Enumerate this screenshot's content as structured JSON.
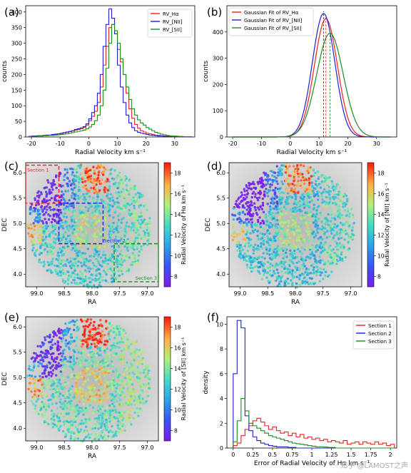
{
  "panels": {
    "a": {
      "label": "(a)"
    },
    "b": {
      "label": "(b)"
    },
    "c": {
      "label": "(c)"
    },
    "d": {
      "label": "(d)"
    },
    "e": {
      "label": "(e)"
    },
    "f": {
      "label": "(f)"
    }
  },
  "watermark": "知乎 @LAMOST之声",
  "colors": {
    "red": "#e8231e",
    "blue": "#1f1fd6",
    "green": "#1e8b1e",
    "sky_bg": "#d4d4d4"
  },
  "chart_data": [
    {
      "id": "a",
      "type": "histogram",
      "xlabel": "Radial Velocity km s⁻¹",
      "ylabel": "counts",
      "xlim": [
        -22,
        37
      ],
      "ylim": [
        0,
        420
      ],
      "xticks": [
        -20,
        -10,
        0,
        10,
        20,
        30
      ],
      "yticks": [
        0,
        50,
        100,
        150,
        200,
        250,
        300,
        350,
        400
      ],
      "legend": "top-right",
      "bin_start": -21,
      "bin_width": 1,
      "series": [
        {
          "name": "RV_Hα",
          "color": "#e8231e",
          "values": [
            2,
            3,
            3,
            4,
            4,
            5,
            6,
            6,
            7,
            8,
            10,
            11,
            13,
            15,
            17,
            19,
            22,
            24,
            27,
            30,
            38,
            52,
            66,
            82,
            110,
            160,
            230,
            290,
            350,
            360,
            340,
            280,
            240,
            200,
            140,
            90,
            60,
            40,
            28,
            20,
            16,
            12,
            10,
            8,
            6,
            5,
            4,
            3,
            3,
            2,
            2,
            2,
            1,
            1,
            1,
            1,
            1
          ]
        },
        {
          "name": "RV_[NII]",
          "color": "#1f1fd6",
          "values": [
            2,
            3,
            3,
            4,
            4,
            5,
            6,
            6,
            8,
            9,
            10,
            12,
            14,
            16,
            18,
            20,
            24,
            26,
            29,
            33,
            42,
            58,
            78,
            100,
            140,
            200,
            290,
            360,
            410,
            380,
            330,
            230,
            160,
            110,
            70,
            45,
            30,
            20,
            15,
            12,
            10,
            8,
            6,
            5,
            4,
            3,
            3,
            2,
            2,
            1,
            1,
            1,
            1,
            1,
            0,
            0,
            0
          ]
        },
        {
          "name": "RV_[SII]",
          "color": "#1e8b1e",
          "values": [
            1,
            2,
            2,
            3,
            3,
            4,
            4,
            5,
            5,
            6,
            7,
            8,
            9,
            10,
            12,
            14,
            16,
            18,
            20,
            22,
            26,
            32,
            40,
            52,
            70,
            100,
            150,
            220,
            300,
            360,
            340,
            300,
            250,
            200,
            160,
            120,
            90,
            70,
            55,
            45,
            38,
            30,
            25,
            20,
            15,
            12,
            9,
            7,
            5,
            4,
            3,
            3,
            2,
            2,
            1,
            1,
            1
          ]
        }
      ]
    },
    {
      "id": "b",
      "type": "line",
      "xlabel": "Radial Velocity km s⁻¹",
      "ylabel": "counts",
      "xlim": [
        -22,
        37
      ],
      "ylim": [
        0,
        500
      ],
      "xticks": [
        -20,
        -10,
        0,
        10,
        20,
        30
      ],
      "yticks": [
        0,
        100,
        200,
        300,
        400
      ],
      "legend": "top-left",
      "vlines": "dashed at each mean",
      "series": [
        {
          "name": "Gaussian Fit of RV_Hα",
          "color": "#e8231e",
          "mean": 12.4,
          "sigma": 4.0,
          "amp": 450
        },
        {
          "name": "Gaussian Fit of RV_[NII]",
          "color": "#1f1fd6",
          "mean": 11.6,
          "sigma": 3.9,
          "amp": 470
        },
        {
          "name": "Gaussian Fit of RV_[SII]",
          "color": "#1e8b1e",
          "mean": 13.8,
          "sigma": 4.6,
          "amp": 395
        }
      ]
    },
    {
      "id": "c",
      "type": "scatter",
      "xlabel": "RA",
      "ylabel": "DEC",
      "colorbar_label": "Radial Velocity of Hα km s⁻¹",
      "xlim": [
        99.2,
        96.8
      ],
      "ylim": [
        3.75,
        6.2
      ],
      "xticks": [
        99.0,
        98.5,
        98.0,
        97.5,
        97.0
      ],
      "yticks": [
        4.0,
        4.5,
        5.0,
        5.5,
        6.0
      ],
      "colorbar_range": [
        7,
        19
      ],
      "colorbar_ticks": [
        8,
        10,
        12,
        14,
        16,
        18
      ],
      "sections": [
        {
          "name": "Section 1",
          "color": "#e8231e",
          "ra": [
            99.2,
            98.6
          ],
          "dec": [
            5.4,
            6.15
          ]
        },
        {
          "name": "Section 2",
          "color": "#1f1fd6",
          "ra": [
            98.6,
            97.8
          ],
          "dec": [
            4.6,
            5.4
          ]
        },
        {
          "name": "Section 3",
          "color": "#1e8b1e",
          "ra": [
            97.6,
            96.8
          ],
          "dec": [
            3.85,
            4.6
          ]
        }
      ]
    },
    {
      "id": "d",
      "type": "scatter",
      "xlabel": "RA",
      "ylabel": "DEC",
      "colorbar_label": "Radial Velocity of [NII] km s⁻¹",
      "xlim": [
        99.2,
        96.8
      ],
      "ylim": [
        3.75,
        6.2
      ],
      "xticks": [
        99.0,
        98.5,
        98.0,
        97.5,
        97.0
      ],
      "yticks": [
        4.0,
        4.5,
        5.0,
        5.5,
        6.0
      ],
      "colorbar_range": [
        7,
        19
      ],
      "colorbar_ticks": [
        8,
        10,
        12,
        14,
        16,
        18
      ]
    },
    {
      "id": "e",
      "type": "scatter",
      "xlabel": "RA",
      "ylabel": "DEC",
      "colorbar_label": "Radial Velocity of [SII] km s⁻¹",
      "xlim": [
        99.2,
        96.8
      ],
      "ylim": [
        3.75,
        6.2
      ],
      "xticks": [
        99.0,
        98.5,
        98.0,
        97.5,
        97.0
      ],
      "yticks": [
        4.0,
        4.5,
        5.0,
        5.5,
        6.0
      ],
      "colorbar_range": [
        7,
        19
      ],
      "colorbar_ticks": [
        8,
        10,
        12,
        14,
        16,
        18
      ]
    },
    {
      "id": "f",
      "type": "histogram",
      "xlabel": "Error of Radial Velocity of Hα km s⁻¹",
      "ylabel": "density",
      "xlim": [
        -0.08,
        2.08
      ],
      "ylim": [
        0,
        10.6
      ],
      "xticks": [
        0.0,
        0.25,
        0.5,
        0.75,
        1.0,
        1.25,
        1.5,
        1.75,
        2.0
      ],
      "yticks": [
        0,
        2,
        4,
        6,
        8,
        10
      ],
      "legend": "top-right",
      "bin_start": 0,
      "bin_width": 0.05,
      "series": [
        {
          "name": "Section 1",
          "color": "#e8231e",
          "values": [
            0.2,
            0.4,
            1.0,
            1.5,
            1.8,
            2.2,
            2.4,
            2.1,
            1.8,
            1.5,
            1.7,
            1.4,
            1.2,
            1.3,
            1.0,
            1.2,
            0.9,
            1.1,
            0.8,
            0.9,
            0.7,
            0.8,
            0.6,
            0.7,
            0.5,
            0.6,
            0.5,
            0.4,
            0.6,
            0.3,
            0.4,
            0.5,
            0.3,
            0.5,
            0.4,
            0.3,
            0.5,
            0.3,
            0.4,
            0.2,
            0.3
          ]
        },
        {
          "name": "Section 2",
          "color": "#1f1fd6",
          "values": [
            6.0,
            10.3,
            9.7,
            2.6,
            1.4,
            0.9,
            0.6,
            0.4,
            0.3,
            0.2,
            0.15,
            0.1,
            0.1,
            0.1,
            0.05,
            0.05,
            0,
            0,
            0,
            0,
            0,
            0,
            0,
            0,
            0,
            0,
            0,
            0,
            0,
            0,
            0,
            0,
            0,
            0,
            0,
            0,
            0,
            0,
            0,
            0,
            0
          ]
        },
        {
          "name": "Section 3",
          "color": "#1e8b1e",
          "values": [
            0.5,
            2.2,
            4.0,
            3.0,
            2.0,
            1.8,
            1.6,
            1.4,
            1.2,
            1.0,
            0.9,
            0.8,
            0.7,
            0.6,
            0.5,
            0.4,
            0.35,
            0.3,
            0.25,
            0.2,
            0.15,
            0.1,
            0.1,
            0.08,
            0.05,
            0.05,
            0,
            0,
            0,
            0,
            0,
            0,
            0,
            0,
            0,
            0,
            0,
            0,
            0,
            0,
            0
          ]
        }
      ]
    }
  ]
}
